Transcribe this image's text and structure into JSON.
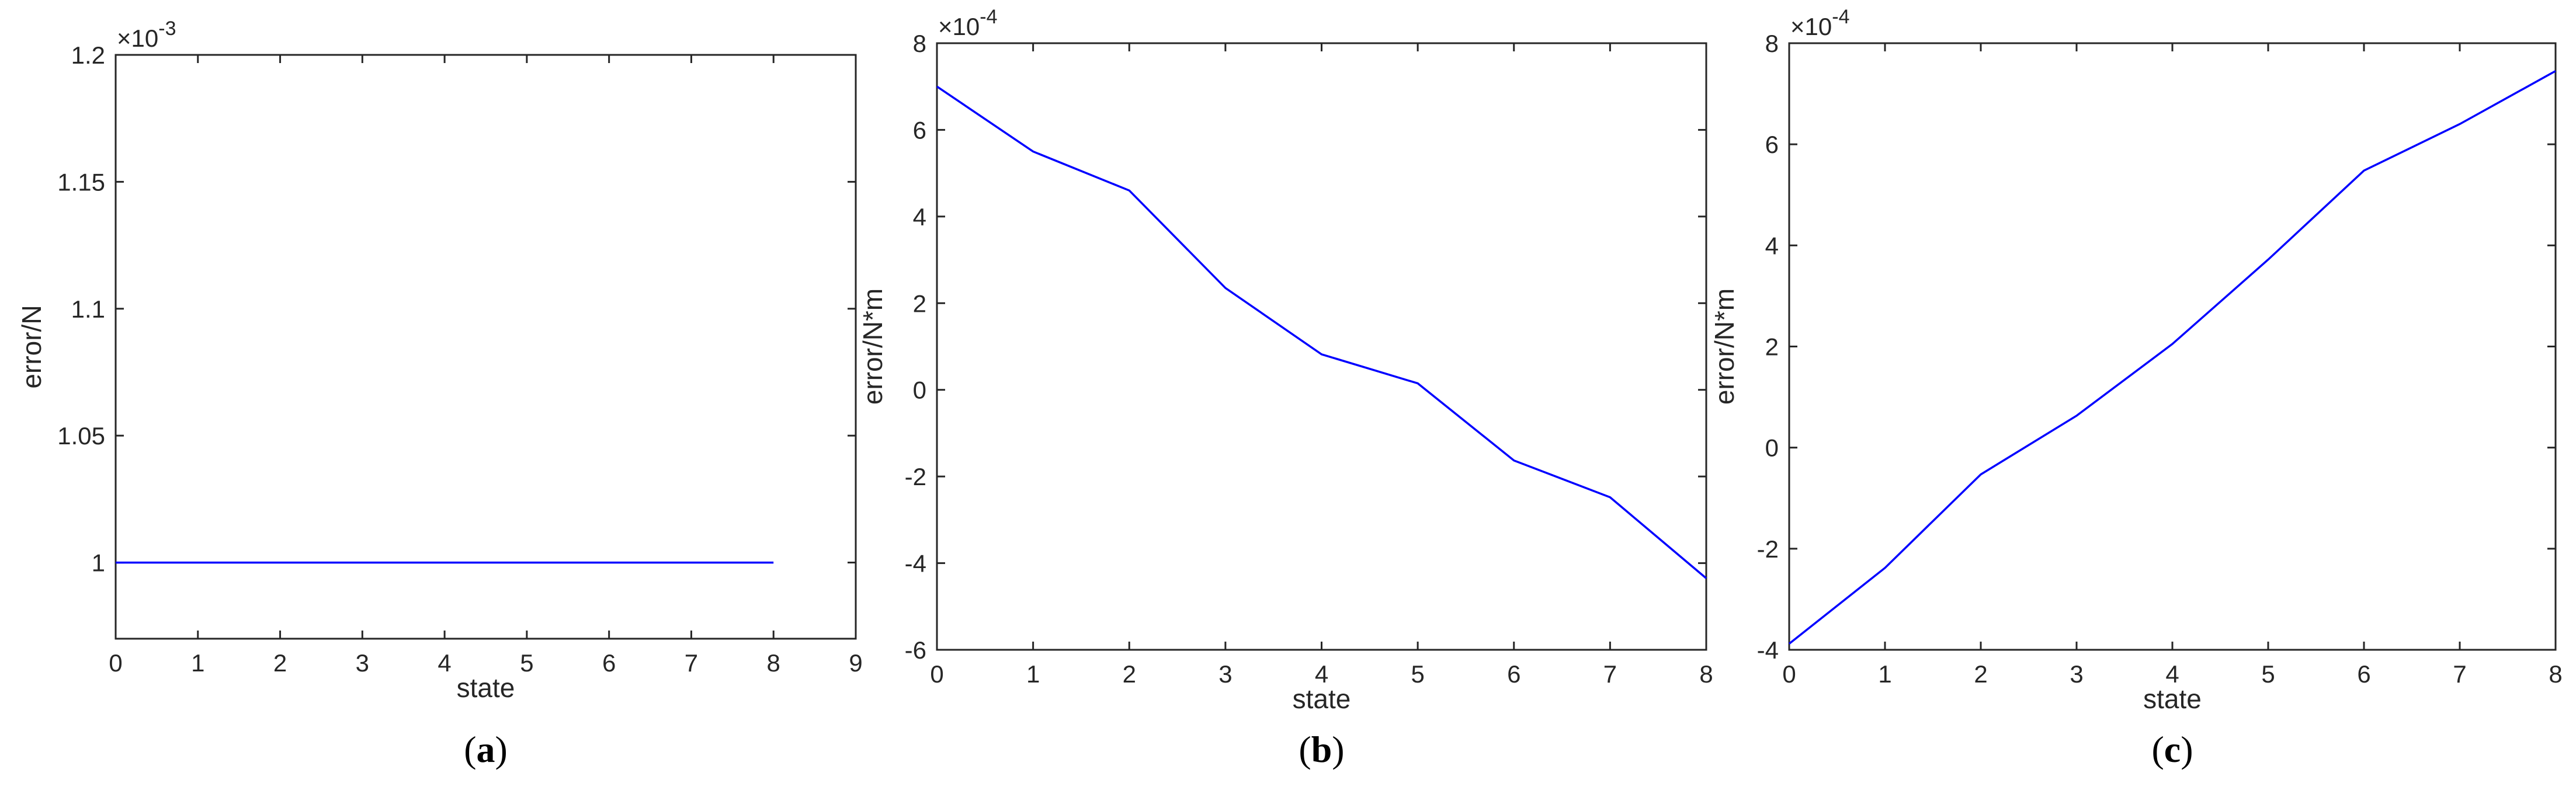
{
  "chart_data": [
    {
      "type": "line",
      "caption": {
        "open": "(",
        "letter": "a",
        "close": ")"
      },
      "xlabel": "state",
      "ylabel": "error/N",
      "exponent": {
        "base": "×10",
        "power": "-3"
      },
      "xlim": [
        0,
        9
      ],
      "ylim": [
        0.00097,
        0.0012
      ],
      "xticks": [
        "0",
        "1",
        "2",
        "3",
        "4",
        "5",
        "6",
        "7",
        "8",
        "9"
      ],
      "yticks": [
        {
          "value": 0.001,
          "label": "1"
        },
        {
          "value": 0.00105,
          "label": "1.05"
        },
        {
          "value": 0.0011,
          "label": "1.1"
        },
        {
          "value": 0.00115,
          "label": "1.15"
        },
        {
          "value": 0.0012,
          "label": "1.2"
        }
      ],
      "line_color": "#0000ff",
      "x": [
        0,
        1,
        2,
        3,
        4,
        5,
        6,
        7,
        8
      ],
      "y": [
        0.001,
        0.001,
        0.001,
        0.001,
        0.001,
        0.001,
        0.001,
        0.001,
        0.001
      ]
    },
    {
      "type": "line",
      "caption": {
        "open": "(",
        "letter": "b",
        "close": ")"
      },
      "xlabel": "state",
      "ylabel": "error/N*m",
      "exponent": {
        "base": "×10",
        "power": "-4"
      },
      "xlim": [
        0,
        8
      ],
      "ylim": [
        -0.0006,
        0.0008
      ],
      "xticks": [
        "0",
        "1",
        "2",
        "3",
        "4",
        "5",
        "6",
        "7",
        "8"
      ],
      "yticks": [
        {
          "value": -0.0006,
          "label": "-6"
        },
        {
          "value": -0.0004,
          "label": "-4"
        },
        {
          "value": -0.0002,
          "label": "-2"
        },
        {
          "value": 0,
          "label": "0"
        },
        {
          "value": 0.0002,
          "label": "2"
        },
        {
          "value": 0.0004,
          "label": "4"
        },
        {
          "value": 0.0006,
          "label": "6"
        },
        {
          "value": 0.0008,
          "label": "8"
        }
      ],
      "line_color": "#0000ff",
      "x": [
        0,
        1,
        2,
        3,
        4,
        5,
        6,
        7,
        8
      ],
      "y": [
        0.0007,
        0.00055,
        0.00046,
        0.000235,
        8.2e-05,
        1.5e-05,
        -0.000163,
        -0.000248,
        -0.000435
      ]
    },
    {
      "type": "line",
      "caption": {
        "open": "(",
        "letter": "c",
        "close": ")"
      },
      "xlabel": "state",
      "ylabel": "error/N*m",
      "exponent": {
        "base": "×10",
        "power": "-4"
      },
      "xlim": [
        0,
        8
      ],
      "ylim": [
        -0.0004,
        0.0008
      ],
      "xticks": [
        "0",
        "1",
        "2",
        "3",
        "4",
        "5",
        "6",
        "7",
        "8"
      ],
      "yticks": [
        {
          "value": -0.0004,
          "label": "-4"
        },
        {
          "value": -0.0002,
          "label": "-2"
        },
        {
          "value": 0,
          "label": "0"
        },
        {
          "value": 0.0002,
          "label": "2"
        },
        {
          "value": 0.0004,
          "label": "4"
        },
        {
          "value": 0.0006,
          "label": "6"
        },
        {
          "value": 0.0008,
          "label": "8"
        }
      ],
      "line_color": "#0000ff",
      "x": [
        0,
        1,
        2,
        3,
        4,
        5,
        6,
        7,
        8
      ],
      "y": [
        -0.000388,
        -0.000238,
        -5.3e-05,
        6.3e-05,
        0.000205,
        0.000372,
        0.000548,
        0.00064,
        0.000745
      ]
    }
  ]
}
